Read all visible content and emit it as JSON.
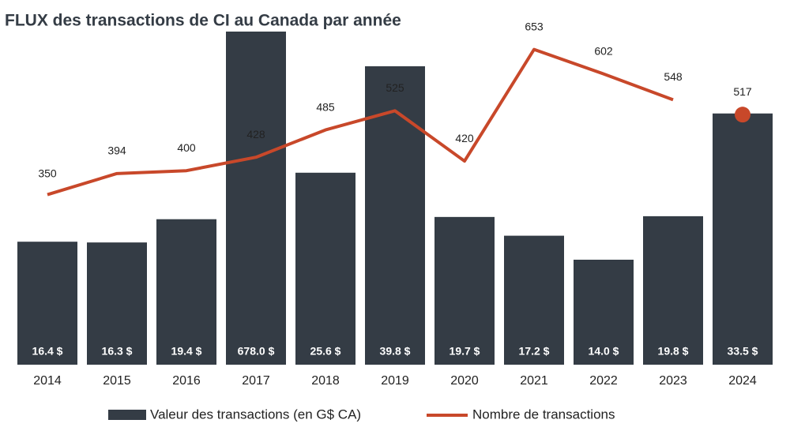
{
  "chart_data": {
    "type": "bar_line",
    "title": "FLUX des transactions de CI au Canada par année",
    "categories": [
      "2014",
      "2015",
      "2016",
      "2017",
      "2018",
      "2019",
      "2020",
      "2021",
      "2022",
      "2023",
      "2024"
    ],
    "series": [
      {
        "name": "Valeur des transactions (en G$ CA)",
        "type": "bar",
        "color": "#343c45",
        "values": [
          16.4,
          16.3,
          19.4,
          678.0,
          25.6,
          39.8,
          19.7,
          17.2,
          14.0,
          19.8,
          33.5
        ],
        "value_labels": [
          "16.4 $",
          "16.3 $",
          "19.4 $",
          "678.0 $",
          "25.6 $",
          "39.8 $",
          "19.7 $",
          "17.2 $",
          "14.0 $",
          "19.8 $",
          "33.5 $"
        ]
      },
      {
        "name": "Nombre de transactions",
        "type": "line",
        "color": "#c8482a",
        "values": [
          350,
          394,
          400,
          428,
          485,
          525,
          420,
          653,
          602,
          548,
          517
        ]
      }
    ]
  }
}
